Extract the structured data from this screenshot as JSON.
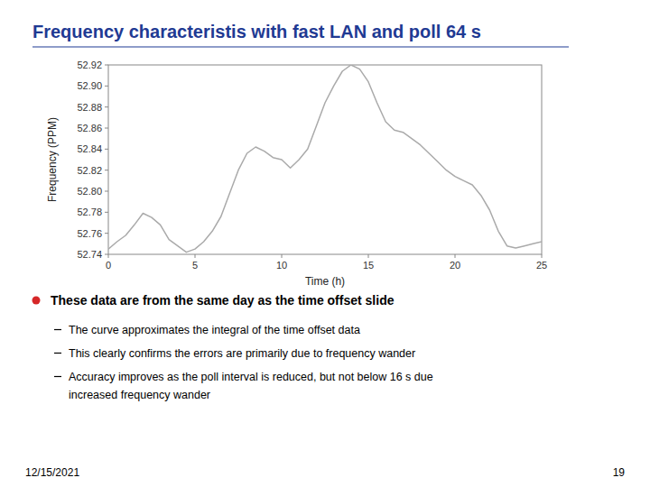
{
  "chart_data": {
    "type": "line",
    "title": "Frequency characteristis with fast LAN and poll 64 s",
    "xlabel": "Time (h)",
    "ylabel": "Frequency (PPM)",
    "x": [
      0.0,
      0.5,
      1.0,
      1.5,
      2.0,
      2.5,
      3.0,
      3.5,
      4.0,
      4.5,
      5.0,
      5.5,
      6.0,
      6.5,
      7.0,
      7.5,
      8.0,
      8.5,
      9.0,
      9.5,
      10.0,
      10.5,
      11.0,
      11.5,
      12.0,
      12.5,
      13.0,
      13.5,
      14.0,
      14.5,
      15.0,
      15.5,
      16.0,
      16.5,
      17.0,
      17.5,
      18.0,
      18.5,
      19.0,
      19.5,
      20.0,
      20.5,
      21.0,
      21.5,
      22.0,
      22.5,
      23.0,
      23.5,
      24.0,
      24.5,
      25.0
    ],
    "values": [
      52.745,
      52.752,
      52.758,
      52.768,
      52.779,
      52.775,
      52.768,
      52.754,
      52.748,
      52.742,
      52.745,
      52.752,
      52.762,
      52.776,
      52.798,
      52.82,
      52.836,
      52.842,
      52.838,
      52.832,
      52.83,
      52.822,
      52.83,
      52.84,
      52.862,
      52.884,
      52.9,
      52.914,
      52.92,
      52.916,
      52.904,
      52.884,
      52.866,
      52.858,
      52.856,
      52.85,
      52.844,
      52.836,
      52.828,
      52.82,
      52.814,
      52.81,
      52.806,
      52.796,
      52.782,
      52.762,
      52.748,
      52.746,
      52.748,
      52.75,
      52.752
    ],
    "color": "#aaaaaa",
    "xlim": [
      0,
      25
    ],
    "ylim": [
      52.74,
      52.92
    ],
    "xticks": [
      0,
      5,
      10,
      15,
      20,
      25
    ],
    "yticks": [
      52.74,
      52.76,
      52.78,
      {
        "value": 52.8,
        "label": "52.80"
      },
      52.82,
      52.84,
      52.86,
      52.88,
      {
        "value": 52.9,
        "label": "52.90"
      },
      52.92
    ],
    "annotations": [
      "These data are from the same day as the time offset slide",
      "The curve approximates the integral of the time offset data",
      "This clearly confirms the errors are primarily due to frequency wander",
      "Accuracy improves as the poll interval is reduced, but not below 16 s due",
      "increased frequency wander",
      "12/15/2021",
      "19"
    ]
  }
}
